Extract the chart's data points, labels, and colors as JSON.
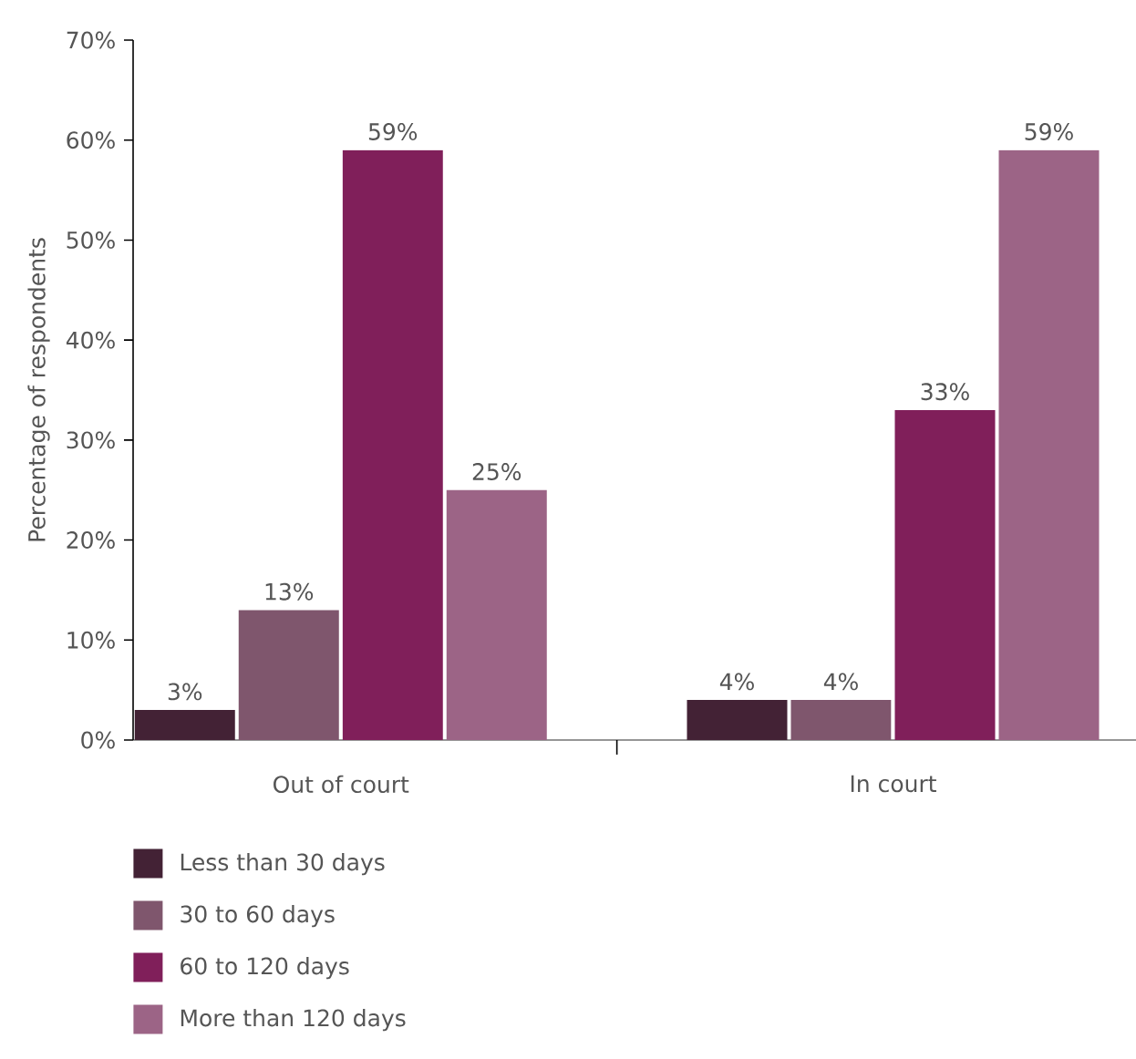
{
  "chart_data": {
    "type": "bar",
    "ylabel": "Percentage of respondents",
    "categories": [
      "Out of court",
      "In court"
    ],
    "series": [
      {
        "name": "Less than 30 days",
        "color": "#432235",
        "values": [
          3,
          4
        ],
        "value_labels": [
          "3%",
          "4%"
        ]
      },
      {
        "name": "30 to 60 days",
        "color": "#7f566d",
        "values": [
          13,
          4
        ],
        "value_labels": [
          "13%",
          "4%"
        ]
      },
      {
        "name": "60 to 120 days",
        "color": "#801f5a",
        "values": [
          59,
          33
        ],
        "value_labels": [
          "59%",
          "33%"
        ]
      },
      {
        "name": "More than 120 days",
        "color": "#9c6486",
        "values": [
          25,
          59
        ],
        "value_labels": [
          "25%",
          "59%"
        ]
      }
    ],
    "ylim": [
      0,
      70
    ],
    "yticks": [
      {
        "value": 0,
        "label": "0%"
      },
      {
        "value": 10,
        "label": "10%"
      },
      {
        "value": 20,
        "label": "20%"
      },
      {
        "value": 30,
        "label": "30%"
      },
      {
        "value": 40,
        "label": "40%"
      },
      {
        "value": 50,
        "label": "50%"
      },
      {
        "value": 60,
        "label": "60%"
      },
      {
        "value": 70,
        "label": "70%"
      }
    ],
    "legend": "bottom"
  }
}
